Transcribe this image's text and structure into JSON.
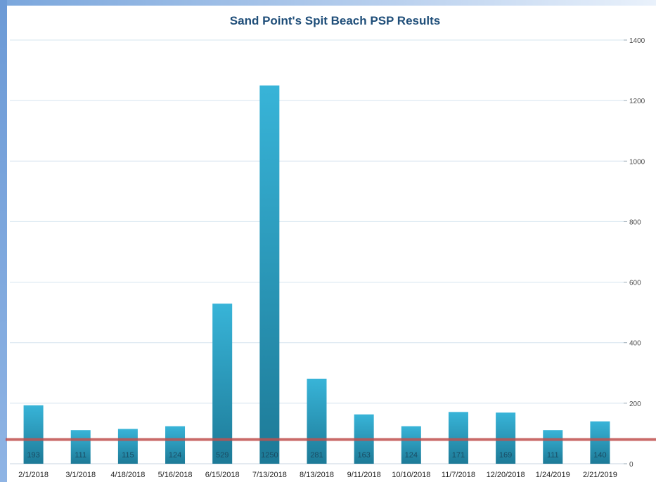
{
  "chart_data": {
    "type": "bar",
    "title": "Sand Point's Spit Beach PSP Results",
    "categories": [
      "2/1/2018",
      "3/1/2018",
      "4/18/2018",
      "5/16/2018",
      "6/15/2018",
      "7/13/2018",
      "8/13/2018",
      "9/11/2018",
      "10/10/2018",
      "11/7/2018",
      "12/20/2018",
      "1/24/2019",
      "2/21/2019"
    ],
    "values": [
      193,
      111,
      115,
      124,
      529,
      1250,
      281,
      163,
      124,
      171,
      169,
      111,
      140
    ],
    "ylim": [
      0,
      1400
    ],
    "yticks": [
      0,
      200,
      400,
      600,
      800,
      1000,
      1200,
      1400
    ],
    "y_axis_side": "right",
    "grid": true,
    "reference_line": 80,
    "colors": {
      "bar_top": "#38b4d8",
      "bar_bottom": "#1d7a97",
      "reference_line": "#c0504d",
      "grid": "#d5e4ef"
    }
  }
}
